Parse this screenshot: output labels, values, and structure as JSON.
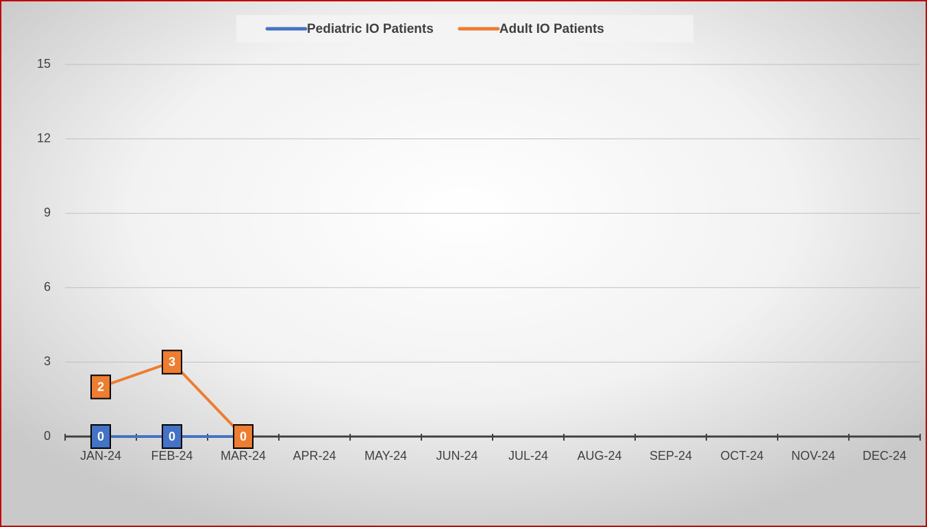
{
  "chart_data": {
    "type": "line",
    "categories": [
      "JAN-24",
      "FEB-24",
      "MAR-24",
      "APR-24",
      "MAY-24",
      "JUN-24",
      "JUL-24",
      "AUG-24",
      "SEP-24",
      "OCT-24",
      "NOV-24",
      "DEC-24"
    ],
    "series": [
      {
        "name": "Pediatric IO Patients",
        "color": "#4472c4",
        "values": [
          0,
          0,
          0,
          null,
          null,
          null,
          null,
          null,
          null,
          null,
          null,
          null
        ]
      },
      {
        "name": "Adult IO Patients",
        "color": "#ed7d31",
        "values": [
          2,
          3,
          0,
          null,
          null,
          null,
          null,
          null,
          null,
          null,
          null,
          null
        ]
      }
    ],
    "ylim": [
      0,
      15
    ],
    "yticks": [
      0,
      3,
      6,
      9,
      12,
      15
    ],
    "grid": true,
    "legend": "top",
    "data_labels": true
  }
}
